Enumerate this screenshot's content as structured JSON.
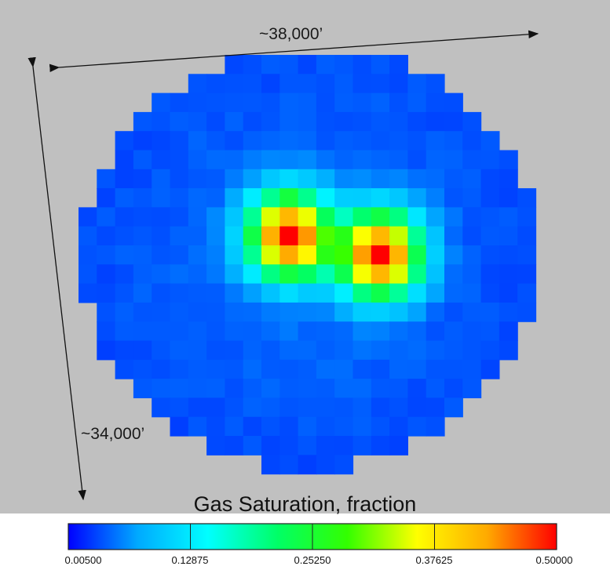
{
  "dimensions": {
    "width_label": "~38,000’",
    "height_label": "~34,000’"
  },
  "colorbar": {
    "title": "Gas Saturation, fraction",
    "ticks": [
      "0.00500",
      "0.12875",
      "0.25250",
      "0.37625",
      "0.50000"
    ],
    "min": 0.005,
    "max": 0.5,
    "colormap": [
      "#0000ff",
      "#00aaff",
      "#00ffff",
      "#00ff66",
      "#33ff00",
      "#ffff00",
      "#ffaa00",
      "#ff0000"
    ]
  },
  "chart_data": {
    "type": "heatmap",
    "title": "Gas Saturation, fraction",
    "xlabel": "~38,000’",
    "ylabel": "~34,000’",
    "value_range": [
      0.005,
      0.5
    ],
    "colorbar_ticks": [
      0.005,
      0.12875,
      0.2525,
      0.37625,
      0.5
    ],
    "description_of_grid": "approx. 26 x 22 cell circular reservoir grid",
    "grid_cols": 26,
    "grid_rows": 22,
    "hotspots": [
      {
        "col": 11,
        "row": 9,
        "value": 0.49
      },
      {
        "col": 16,
        "row": 10,
        "value": 0.49
      }
    ],
    "background_value": 0.03
  }
}
